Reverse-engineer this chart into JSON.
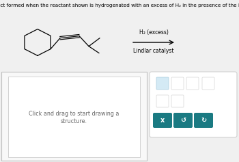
{
  "title_text": "Draw the product formed when the reactant shown is hydrogenated with an excess of H₂ in the presence of the Lindlar catalyst.",
  "reagent_line1": "H₂ (excess)",
  "reagent_line2": "Lindlar catalyst",
  "bg_color": "#f0f0f0",
  "white": "#ffffff",
  "teal_color": "#1a7a82",
  "drawing_area_text": "Click and drag to start drawing a\nstructure.",
  "title_fontsize": 5.2,
  "reagent_fontsize": 5.5,
  "drawing_text_fontsize": 5.8
}
